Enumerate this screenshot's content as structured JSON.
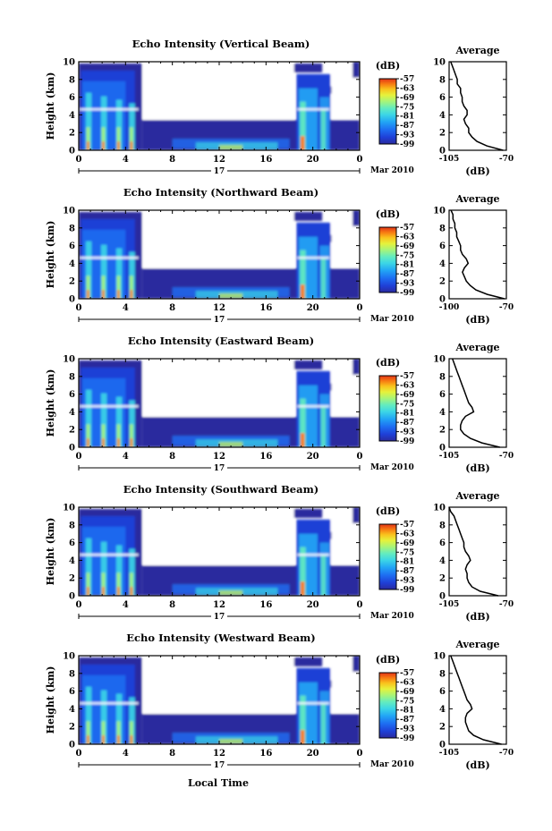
{
  "colors": {
    "axis": "#000000",
    "background": "#ffffff",
    "colormap": [
      "#2a2a9e",
      "#1f3fd6",
      "#1e6ef2",
      "#22a6f5",
      "#3cd6e6",
      "#63ecbf",
      "#a6f47a",
      "#e6f23b",
      "#f9c21c",
      "#f77b12",
      "#e23318"
    ]
  },
  "date_label": "Mar 2010",
  "day_label": "17",
  "x_axis_title": "Local Time",
  "panel_titles": [
    "Echo Intensity (Vertical Beam)",
    "Echo Intensity (Northward Beam)",
    "Echo Intensity (Eastward Beam)",
    "Echo Intensity (Southward Beam)",
    "Echo Intensity (Westward Beam)"
  ],
  "y_axis_label": "Height (km)",
  "colorbar_unit": "(dB)",
  "colorbar_ticks": [
    "-57",
    "-63",
    "-69",
    "-75",
    "-81",
    "-87",
    "-93",
    "-99"
  ],
  "profile_title": "Average",
  "profile_xlabel": "(dB)",
  "chart_data": [
    {
      "type": "heatmap",
      "title": "Echo Intensity (Vertical Beam)",
      "xlabel": "",
      "ylabel": "Height (km)",
      "xlim": [
        0,
        24
      ],
      "ylim": [
        0,
        10
      ],
      "xticks": [
        "0",
        "4",
        "8",
        "12",
        "16",
        "20",
        "0"
      ],
      "yticks": [
        "0",
        "2",
        "4",
        "6",
        "8",
        "10"
      ],
      "colorbar": {
        "label": "(dB)",
        "range": [
          -99,
          -57
        ]
      },
      "profile": {
        "title": "Average",
        "xlabel": "(dB)",
        "xlim": [
          -105,
          -70
        ],
        "xticks": [
          "-105",
          "-70"
        ],
        "height_km": [
          0.0,
          0.5,
          1.0,
          1.5,
          2.0,
          2.5,
          3.0,
          3.5,
          4.0,
          4.5,
          5.0,
          5.5,
          6.0,
          6.5,
          7.0,
          7.5,
          8.0,
          8.5,
          9.0,
          9.5
        ],
        "intensity_db": [
          -72,
          -82,
          -88,
          -91,
          -93,
          -93,
          -95,
          -96,
          -94,
          -94,
          -96,
          -97,
          -97,
          -98,
          -98,
          -100,
          -100,
          -101,
          -102,
          -103
        ]
      }
    },
    {
      "type": "heatmap",
      "title": "Echo Intensity (Northward Beam)",
      "xlabel": "",
      "ylabel": "Height (km)",
      "xlim": [
        0,
        24
      ],
      "ylim": [
        0,
        10
      ],
      "xticks": [
        "0",
        "4",
        "8",
        "12",
        "16",
        "20",
        "0"
      ],
      "yticks": [
        "0",
        "2",
        "4",
        "6",
        "8",
        "10"
      ],
      "colorbar": {
        "label": "(dB)",
        "range": [
          -99,
          -57
        ]
      },
      "profile": {
        "title": "Average",
        "xlabel": "(dB)",
        "xlim": [
          -100,
          -70
        ],
        "xticks": [
          "-100",
          "-70"
        ],
        "height_km": [
          0.0,
          0.5,
          1.0,
          1.5,
          2.0,
          2.5,
          3.0,
          3.5,
          4.0,
          4.5,
          5.0,
          5.5,
          6.0,
          6.5,
          7.0,
          7.5,
          8.0,
          8.5,
          9.0,
          9.5
        ],
        "intensity_db": [
          -71,
          -80,
          -86,
          -89,
          -91,
          -92,
          -93,
          -92,
          -90,
          -91,
          -93,
          -94,
          -94,
          -95,
          -96,
          -96,
          -97,
          -97,
          -98,
          -98
        ]
      }
    },
    {
      "type": "heatmap",
      "title": "Echo Intensity (Eastward Beam)",
      "xlabel": "",
      "ylabel": "Height (km)",
      "xlim": [
        0,
        24
      ],
      "ylim": [
        0,
        10
      ],
      "xticks": [
        "0",
        "4",
        "8",
        "12",
        "16",
        "20",
        "0"
      ],
      "yticks": [
        "0",
        "2",
        "4",
        "6",
        "8",
        "10"
      ],
      "colorbar": {
        "label": "(dB)",
        "range": [
          -99,
          -57
        ]
      },
      "profile": {
        "title": "Average",
        "xlabel": "(dB)",
        "xlim": [
          -105,
          -70
        ],
        "xticks": [
          "-105",
          "-70"
        ],
        "height_km": [
          0.0,
          0.5,
          1.0,
          1.5,
          2.0,
          2.5,
          3.0,
          3.5,
          4.0,
          4.5,
          5.0,
          5.5,
          6.0,
          6.5,
          7.0,
          7.5,
          8.0,
          8.5,
          9.0,
          9.5
        ],
        "intensity_db": [
          -74,
          -85,
          -92,
          -96,
          -98,
          -98,
          -97,
          -95,
          -90,
          -91,
          -93,
          -94,
          -95,
          -96,
          -97,
          -98,
          -99,
          -100,
          -101,
          -102
        ]
      }
    },
    {
      "type": "heatmap",
      "title": "Echo Intensity (Southward Beam)",
      "xlabel": "",
      "ylabel": "Height (km)",
      "xlim": [
        0,
        24
      ],
      "ylim": [
        0,
        10
      ],
      "xticks": [
        "0",
        "4",
        "8",
        "12",
        "16",
        "20",
        "0"
      ],
      "yticks": [
        "0",
        "2",
        "4",
        "6",
        "8",
        "10"
      ],
      "colorbar": {
        "label": "(dB)",
        "range": [
          -99,
          -57
        ]
      },
      "profile": {
        "title": "Average",
        "xlabel": "(dB)",
        "xlim": [
          -105,
          -70
        ],
        "xticks": [
          "-105",
          "-70"
        ],
        "height_km": [
          0.0,
          0.5,
          1.0,
          1.5,
          2.0,
          2.5,
          3.0,
          3.5,
          4.0,
          4.5,
          5.0,
          5.5,
          6.0,
          6.5,
          7.0,
          7.5,
          8.0,
          8.5,
          9.0,
          9.5
        ],
        "intensity_db": [
          -75,
          -86,
          -91,
          -93,
          -94,
          -94,
          -95,
          -94,
          -92,
          -93,
          -95,
          -96,
          -96,
          -97,
          -98,
          -99,
          -100,
          -101,
          -102,
          -104
        ]
      }
    },
    {
      "type": "heatmap",
      "title": "Echo Intensity (Westward Beam)",
      "xlabel": "Local Time",
      "ylabel": "Height (km)",
      "xlim": [
        0,
        24
      ],
      "ylim": [
        0,
        10
      ],
      "xticks": [
        "0",
        "4",
        "8",
        "12",
        "16",
        "20",
        "0"
      ],
      "yticks": [
        "0",
        "2",
        "4",
        "6",
        "8",
        "10"
      ],
      "colorbar": {
        "label": "(dB)",
        "range": [
          -99,
          -57
        ]
      },
      "profile": {
        "title": "Average",
        "xlabel": "(dB)",
        "xlim": [
          -105,
          -70
        ],
        "xticks": [
          "-105",
          "-70"
        ],
        "height_km": [
          0.0,
          0.5,
          1.0,
          1.5,
          2.0,
          2.5,
          3.0,
          3.5,
          4.0,
          4.5,
          5.0,
          5.5,
          6.0,
          6.5,
          7.0,
          7.5,
          8.0,
          8.5,
          9.0,
          9.5
        ],
        "intensity_db": [
          -73,
          -84,
          -90,
          -93,
          -94,
          -95,
          -95,
          -94,
          -91,
          -92,
          -94,
          -95,
          -96,
          -97,
          -98,
          -99,
          -100,
          -101,
          -102,
          -103
        ]
      }
    }
  ]
}
